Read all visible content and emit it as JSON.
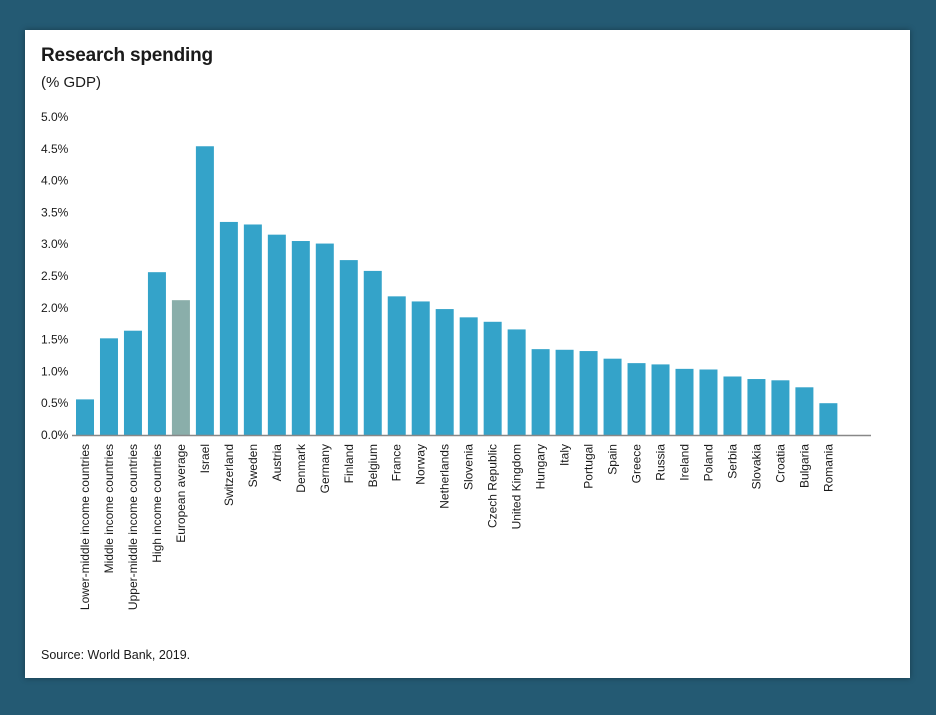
{
  "chart_data": {
    "type": "bar",
    "title": "Research spending",
    "subtitle": "(% GDP)",
    "source": "Source: World Bank, 2019.",
    "xlabel": "",
    "ylabel": "",
    "ylim": [
      0,
      5
    ],
    "yticks": [
      0,
      0.5,
      1.0,
      1.5,
      2.0,
      2.5,
      3.0,
      3.5,
      4.0,
      4.5,
      5.0
    ],
    "ytick_labels": [
      "0.0%",
      "0.5%",
      "1.0%",
      "1.5%",
      "2.0%",
      "2.5%",
      "3.0%",
      "3.5%",
      "4.0%",
      "4.5%",
      "5.0%"
    ],
    "grid": false,
    "legend": "none",
    "colors": {
      "bar": "#34a3c9",
      "highlight": "#8aaeaa",
      "axis": "#888888",
      "background": "#245a73"
    },
    "highlight_category": "European average",
    "categories": [
      "Lower-middle income countries",
      "Middle income countries",
      "Upper-middle income countries",
      "High income countries",
      "European average",
      "Israel",
      "Switzerland",
      "Sweden",
      "Austria",
      "Denmark",
      "Germany",
      "Finland",
      "Belgium",
      "France",
      "Norway",
      "Netherlands",
      "Slovenia",
      "Czech Republic",
      "United Kingdom",
      "Hungary",
      "Italy",
      "Portugal",
      "Spain",
      "Greece",
      "Russia",
      "Ireland",
      "Poland",
      "Serbia",
      "Slovakia",
      "Croatia",
      "Bulgaria",
      "Romania"
    ],
    "values": [
      0.56,
      1.52,
      1.64,
      2.56,
      2.12,
      4.54,
      3.35,
      3.31,
      3.15,
      3.05,
      3.01,
      2.75,
      2.58,
      2.18,
      2.1,
      1.98,
      1.85,
      1.78,
      1.66,
      1.35,
      1.34,
      1.32,
      1.2,
      1.13,
      1.11,
      1.04,
      1.03,
      0.92,
      0.88,
      0.86,
      0.75,
      0.5
    ]
  }
}
